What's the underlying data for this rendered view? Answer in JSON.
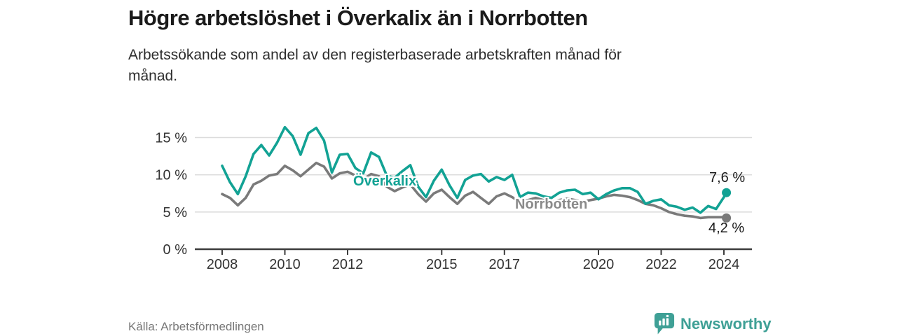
{
  "chart_data": {
    "type": "line",
    "title": "Högre arbetslöshet i Överkalix än i Norrbotten",
    "subtitle": "Arbetssökande som andel av den registerbaserade arbetskraften månad för månad.",
    "subtitle_lines": [
      "Arbetssökande som andel av den registerbaserade arbetskraften månad för",
      "månad."
    ],
    "unit": "%",
    "grid": "horizontal-light",
    "legend": "inline-series-labels",
    "xlim": [
      2007.85,
      2024.9
    ],
    "ylim": [
      0,
      17.5
    ],
    "x": [
      2008,
      2008.25,
      2008.5,
      2008.75,
      2009,
      2009.25,
      2009.5,
      2009.75,
      2010,
      2010.25,
      2010.5,
      2010.75,
      2011,
      2011.25,
      2011.5,
      2011.75,
      2012,
      2012.25,
      2012.5,
      2012.75,
      2013,
      2013.25,
      2013.5,
      2013.75,
      2014,
      2014.25,
      2014.5,
      2014.75,
      2015,
      2015.25,
      2015.5,
      2015.75,
      2016,
      2016.25,
      2016.5,
      2016.75,
      2017,
      2017.25,
      2017.5,
      2017.75,
      2018,
      2018.25,
      2018.5,
      2018.75,
      2019,
      2019.25,
      2019.5,
      2019.75,
      2020,
      2020.25,
      2020.5,
      2020.75,
      2021,
      2021.25,
      2021.5,
      2021.75,
      2022,
      2022.25,
      2022.5,
      2022.75,
      2023,
      2023.25,
      2023.5,
      2023.75,
      2024,
      2024.08
    ],
    "series": [
      {
        "id": "overkalix",
        "name": "Överkalix",
        "color": "#12A294",
        "label_color": "#12A294",
        "end_label": "7,6 %",
        "end_value": 7.6,
        "values": [
          11.2,
          9.0,
          7.4,
          9.8,
          12.8,
          14.0,
          12.6,
          14.3,
          16.4,
          15.2,
          12.7,
          15.6,
          16.3,
          14.6,
          10.3,
          12.7,
          12.8,
          10.9,
          10.2,
          13.0,
          12.4,
          9.9,
          9.6,
          10.5,
          11.3,
          8.4,
          7.0,
          9.2,
          10.7,
          8.6,
          6.9,
          9.3,
          9.9,
          10.1,
          9.1,
          9.7,
          9.3,
          10.0,
          7.0,
          7.6,
          7.5,
          7.1,
          6.9,
          7.6,
          7.9,
          8.0,
          7.4,
          7.6,
          6.7,
          7.4,
          7.9,
          8.2,
          8.2,
          7.7,
          6.1,
          6.5,
          6.7,
          5.9,
          5.7,
          5.3,
          5.6,
          4.9,
          5.8,
          5.4,
          7.0,
          7.6
        ]
      },
      {
        "id": "norrbotten",
        "name": "Norrbotten",
        "color": "#7A7A7A",
        "label_color": "#8A8A8A",
        "end_label": "4,2 %",
        "end_value": 4.2,
        "values": [
          7.4,
          6.9,
          5.9,
          6.9,
          8.7,
          9.2,
          9.9,
          10.1,
          11.2,
          10.6,
          9.8,
          10.7,
          11.6,
          11.1,
          9.5,
          10.2,
          10.4,
          9.9,
          9.4,
          10.1,
          9.8,
          8.4,
          7.8,
          8.3,
          8.7,
          7.4,
          6.4,
          7.5,
          8.0,
          7.0,
          6.1,
          7.2,
          7.7,
          6.9,
          6.1,
          7.1,
          7.5,
          7.0,
          6.3,
          6.6,
          6.9,
          6.6,
          6.3,
          6.6,
          6.8,
          6.6,
          6.4,
          6.6,
          6.8,
          7.1,
          7.3,
          7.2,
          7.0,
          6.6,
          6.1,
          5.9,
          5.5,
          5.0,
          4.7,
          4.5,
          4.4,
          4.2,
          4.3,
          4.3,
          4.3,
          4.2
        ]
      }
    ],
    "x_ticks": [
      {
        "value": 2008,
        "label": "2008"
      },
      {
        "value": 2010,
        "label": "2010"
      },
      {
        "value": 2012,
        "label": "2012"
      },
      {
        "value": 2015,
        "label": "2015"
      },
      {
        "value": 2017,
        "label": "2017"
      },
      {
        "value": 2020,
        "label": "2020"
      },
      {
        "value": 2022,
        "label": "2022"
      },
      {
        "value": 2024,
        "label": "2024"
      }
    ],
    "y_ticks": [
      {
        "value": 0,
        "label": "0 %"
      },
      {
        "value": 5,
        "label": "5 %"
      },
      {
        "value": 10,
        "label": "10 %"
      },
      {
        "value": 15,
        "label": "15 %"
      }
    ]
  },
  "footer": {
    "source": "Källa: Arbetsförmedlingen",
    "brand": "Newsworthy",
    "logo_icon": "bar-chart-speech-bubble"
  },
  "colors": {
    "accent_teal": "#12A294",
    "line_gray": "#7A7A7A",
    "grid": "#DCDCDC",
    "axis": "#3C3C3C",
    "title_text": "#1A1A1A",
    "body_text": "#2D2D2D",
    "muted_text": "#777777",
    "brand_teal": "#3FA096"
  }
}
